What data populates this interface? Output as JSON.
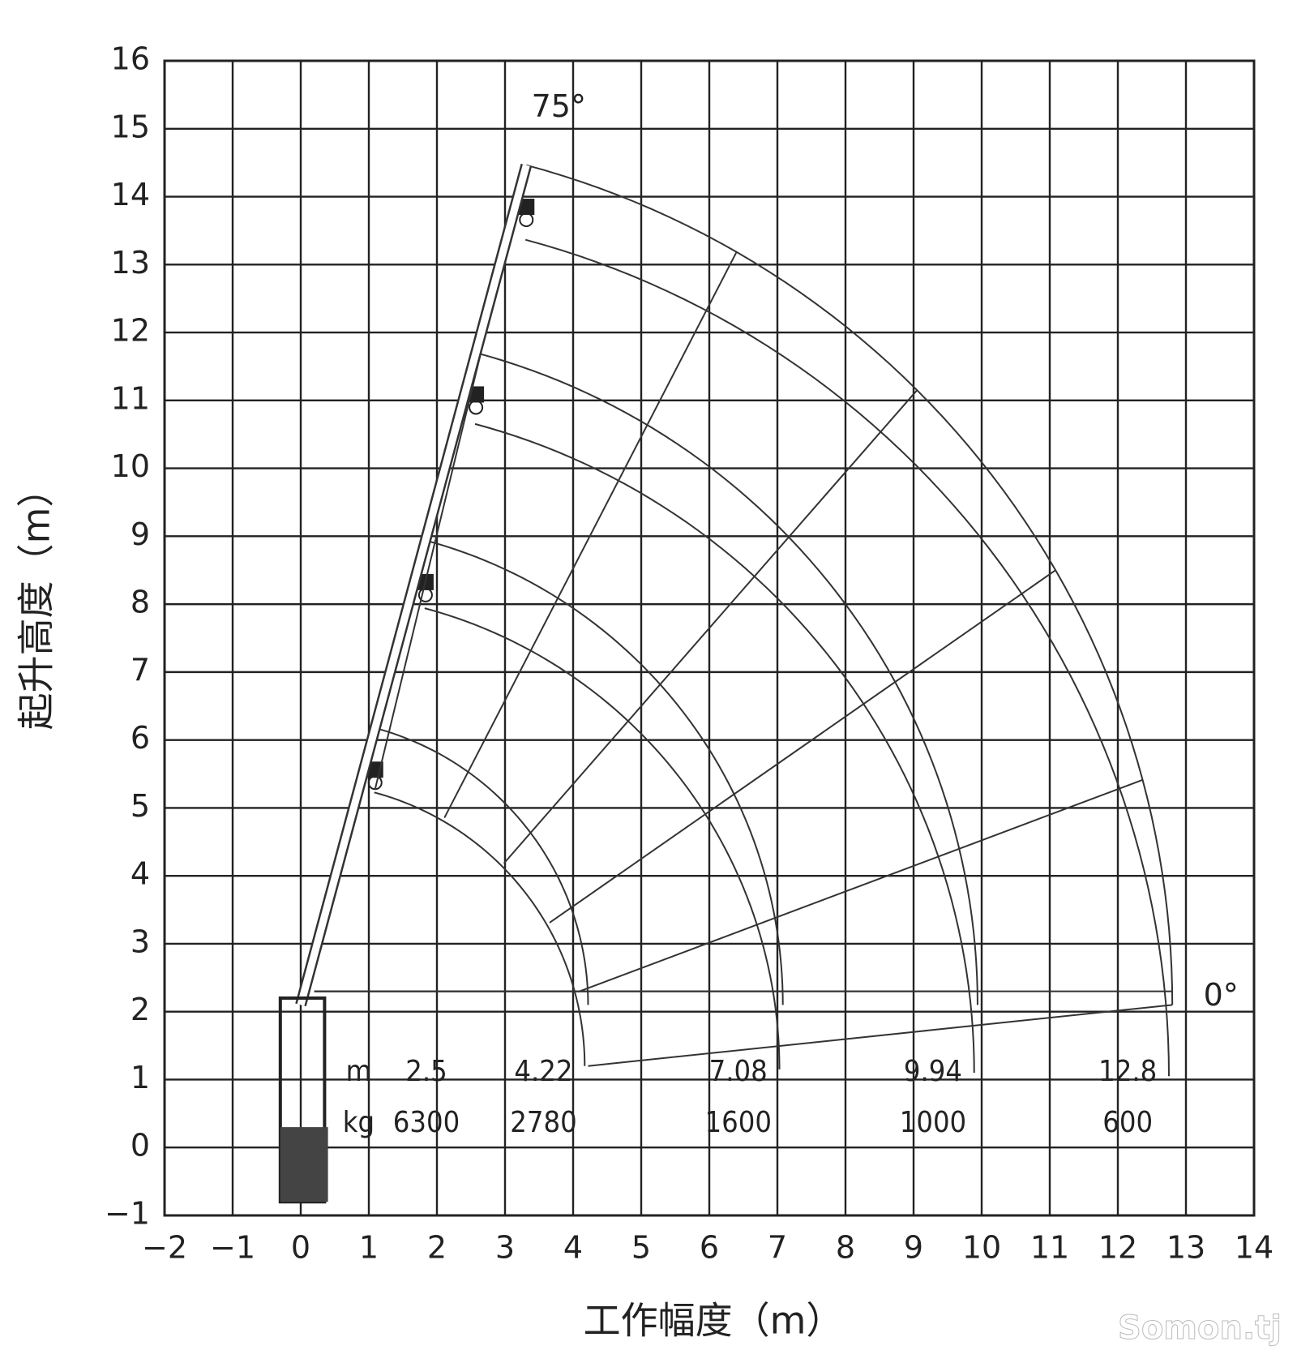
{
  "chart_data": {
    "type": "range",
    "x_label": "工作幅度（m）",
    "y_label": "起升高度（m）",
    "xlim": [
      -2,
      14
    ],
    "ylim": [
      -1,
      16
    ],
    "xticks": [
      {
        "value": -2,
        "label": "−2"
      },
      {
        "value": -1,
        "label": "−1"
      },
      0,
      1,
      2,
      3,
      4,
      5,
      6,
      7,
      8,
      9,
      10,
      11,
      12,
      13,
      14
    ],
    "yticks": [
      {
        "value": -1,
        "label": "−1"
      },
      0,
      1,
      2,
      3,
      4,
      5,
      6,
      7,
      8,
      9,
      10,
      11,
      12,
      13,
      14,
      15,
      16
    ],
    "grid": true,
    "boom_angles": [
      {
        "value": 0,
        "label": "0°"
      },
      {
        "value": 75,
        "label": "75°"
      }
    ],
    "table": {
      "radius_label": "m",
      "load_label": "kg",
      "radius": [
        2.5,
        4.22,
        7.08,
        9.94,
        12.8
      ],
      "load": [
        6300,
        2780,
        1600,
        1000,
        600
      ]
    }
  },
  "watermark": "Somon.tj"
}
